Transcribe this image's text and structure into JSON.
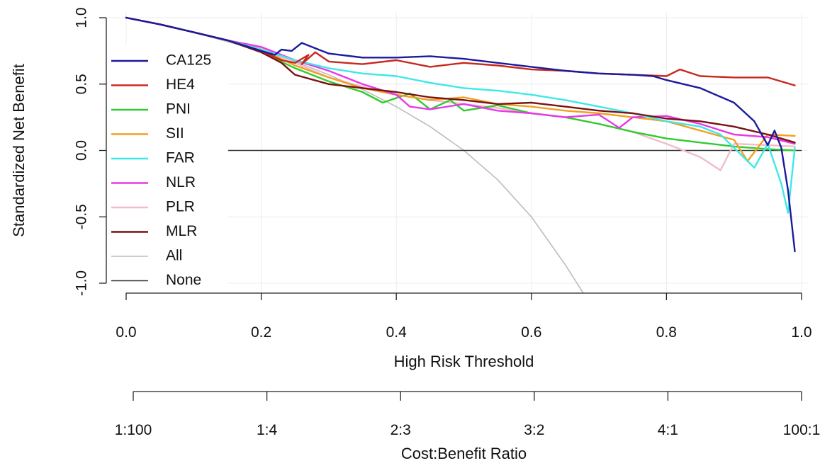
{
  "chart_data": {
    "type": "line",
    "title": "",
    "xlabel": "High Risk Threshold",
    "ylabel": "Standardized Net Benefit",
    "xlim": [
      0,
      1
    ],
    "ylim": [
      -1,
      1
    ],
    "grid": true,
    "x_ticks": [
      "0.0",
      "0.2",
      "0.4",
      "0.6",
      "0.8",
      "1.0"
    ],
    "y_ticks": [
      "-1.0",
      "-0.5",
      "0.0",
      "0.5",
      "1.0"
    ],
    "cost_benefit_axis": {
      "title": "Cost:Benefit Ratio",
      "labels": [
        "1:100",
        "1:4",
        "2:3",
        "3:2",
        "4:1",
        "100:1"
      ]
    },
    "legend_position": "top-left",
    "series": [
      {
        "name": "CA125",
        "color": "#1a1a9c",
        "x": [
          0,
          0.05,
          0.1,
          0.15,
          0.2,
          0.22,
          0.23,
          0.245,
          0.26,
          0.28,
          0.3,
          0.35,
          0.4,
          0.45,
          0.5,
          0.55,
          0.6,
          0.65,
          0.7,
          0.75,
          0.78,
          0.8,
          0.85,
          0.9,
          0.93,
          0.95,
          0.96,
          0.97,
          0.98,
          0.99
        ],
        "y": [
          1.0,
          0.95,
          0.89,
          0.83,
          0.75,
          0.72,
          0.76,
          0.75,
          0.81,
          0.77,
          0.73,
          0.7,
          0.7,
          0.71,
          0.69,
          0.66,
          0.63,
          0.6,
          0.58,
          0.57,
          0.56,
          0.53,
          0.47,
          0.36,
          0.22,
          0.04,
          0.15,
          0.02,
          -0.3,
          -0.76
        ]
      },
      {
        "name": "HE4",
        "color": "#c8281e",
        "x": [
          0,
          0.05,
          0.1,
          0.15,
          0.2,
          0.23,
          0.25,
          0.27,
          0.26,
          0.28,
          0.3,
          0.35,
          0.4,
          0.45,
          0.5,
          0.55,
          0.6,
          0.65,
          0.7,
          0.75,
          0.8,
          0.82,
          0.85,
          0.9,
          0.95,
          0.99
        ],
        "y": [
          1.0,
          0.95,
          0.89,
          0.83,
          0.75,
          0.68,
          0.66,
          0.72,
          0.65,
          0.74,
          0.67,
          0.65,
          0.68,
          0.63,
          0.66,
          0.64,
          0.61,
          0.6,
          0.58,
          0.57,
          0.56,
          0.61,
          0.56,
          0.55,
          0.55,
          0.49
        ]
      },
      {
        "name": "PNI",
        "color": "#2ecc2e",
        "x": [
          0,
          0.05,
          0.1,
          0.15,
          0.2,
          0.25,
          0.3,
          0.35,
          0.38,
          0.42,
          0.45,
          0.48,
          0.5,
          0.55,
          0.6,
          0.65,
          0.7,
          0.75,
          0.8,
          0.85,
          0.9,
          0.95,
          0.99
        ],
        "y": [
          1.0,
          0.95,
          0.89,
          0.83,
          0.74,
          0.62,
          0.52,
          0.44,
          0.36,
          0.43,
          0.31,
          0.38,
          0.3,
          0.34,
          0.28,
          0.25,
          0.2,
          0.14,
          0.09,
          0.06,
          0.03,
          0.01,
          0.0
        ]
      },
      {
        "name": "SII",
        "color": "#f0a020",
        "x": [
          0,
          0.05,
          0.1,
          0.15,
          0.2,
          0.25,
          0.3,
          0.35,
          0.4,
          0.45,
          0.5,
          0.55,
          0.6,
          0.65,
          0.7,
          0.75,
          0.8,
          0.85,
          0.9,
          0.92,
          0.95,
          0.99
        ],
        "y": [
          1.0,
          0.95,
          0.89,
          0.83,
          0.76,
          0.64,
          0.55,
          0.47,
          0.42,
          0.38,
          0.4,
          0.35,
          0.33,
          0.3,
          0.28,
          0.25,
          0.22,
          0.15,
          0.08,
          -0.08,
          0.12,
          0.11
        ]
      },
      {
        "name": "FAR",
        "color": "#3ee8e8",
        "x": [
          0,
          0.05,
          0.1,
          0.15,
          0.2,
          0.25,
          0.3,
          0.35,
          0.4,
          0.45,
          0.5,
          0.55,
          0.6,
          0.65,
          0.7,
          0.75,
          0.8,
          0.85,
          0.88,
          0.9,
          0.93,
          0.95,
          0.97,
          0.98,
          0.99
        ],
        "y": [
          1.0,
          0.95,
          0.89,
          0.83,
          0.76,
          0.68,
          0.62,
          0.58,
          0.56,
          0.51,
          0.47,
          0.45,
          0.42,
          0.38,
          0.33,
          0.28,
          0.22,
          0.18,
          0.12,
          0.02,
          -0.13,
          0.05,
          -0.25,
          -0.47,
          0.02
        ]
      },
      {
        "name": "NLR",
        "color": "#e838e8",
        "x": [
          0,
          0.05,
          0.1,
          0.15,
          0.2,
          0.25,
          0.3,
          0.35,
          0.4,
          0.42,
          0.45,
          0.5,
          0.55,
          0.6,
          0.65,
          0.7,
          0.73,
          0.75,
          0.8,
          0.85,
          0.9,
          0.95,
          0.99
        ],
        "y": [
          1.0,
          0.95,
          0.89,
          0.83,
          0.78,
          0.68,
          0.6,
          0.5,
          0.42,
          0.33,
          0.31,
          0.35,
          0.3,
          0.28,
          0.25,
          0.27,
          0.17,
          0.25,
          0.26,
          0.2,
          0.12,
          0.1,
          0.05
        ]
      },
      {
        "name": "PLR",
        "color": "#f2bcc8",
        "x": [
          0,
          0.05,
          0.1,
          0.15,
          0.2,
          0.25,
          0.3,
          0.35,
          0.4,
          0.45,
          0.5,
          0.55,
          0.6,
          0.65,
          0.7,
          0.75,
          0.8,
          0.85,
          0.88,
          0.9,
          0.95,
          0.99
        ],
        "y": [
          1.0,
          0.95,
          0.89,
          0.83,
          0.77,
          0.66,
          0.55,
          0.48,
          0.42,
          0.38,
          0.35,
          0.32,
          0.28,
          0.25,
          0.2,
          0.14,
          0.05,
          -0.05,
          -0.15,
          0.05,
          0.04,
          0.03
        ]
      },
      {
        "name": "MLR",
        "color": "#7a1212",
        "x": [
          0,
          0.05,
          0.1,
          0.15,
          0.2,
          0.23,
          0.25,
          0.3,
          0.35,
          0.4,
          0.45,
          0.5,
          0.55,
          0.6,
          0.65,
          0.7,
          0.75,
          0.8,
          0.85,
          0.9,
          0.95,
          0.99
        ],
        "y": [
          1.0,
          0.95,
          0.89,
          0.83,
          0.74,
          0.66,
          0.57,
          0.5,
          0.47,
          0.44,
          0.4,
          0.38,
          0.35,
          0.36,
          0.33,
          0.3,
          0.28,
          0.24,
          0.22,
          0.18,
          0.12,
          0.06
        ]
      },
      {
        "name": "All",
        "color": "#bdbdbd",
        "x": [
          0,
          0.05,
          0.1,
          0.15,
          0.2,
          0.25,
          0.3,
          0.35,
          0.4,
          0.45,
          0.5,
          0.55,
          0.6,
          0.65,
          0.68
        ],
        "y": [
          1.0,
          0.95,
          0.89,
          0.82,
          0.75,
          0.67,
          0.57,
          0.46,
          0.33,
          0.18,
          0.0,
          -0.22,
          -0.5,
          -0.86,
          -1.1
        ]
      },
      {
        "name": "None",
        "color": "#333333",
        "x": [
          0,
          1
        ],
        "y": [
          0,
          0
        ]
      }
    ]
  }
}
